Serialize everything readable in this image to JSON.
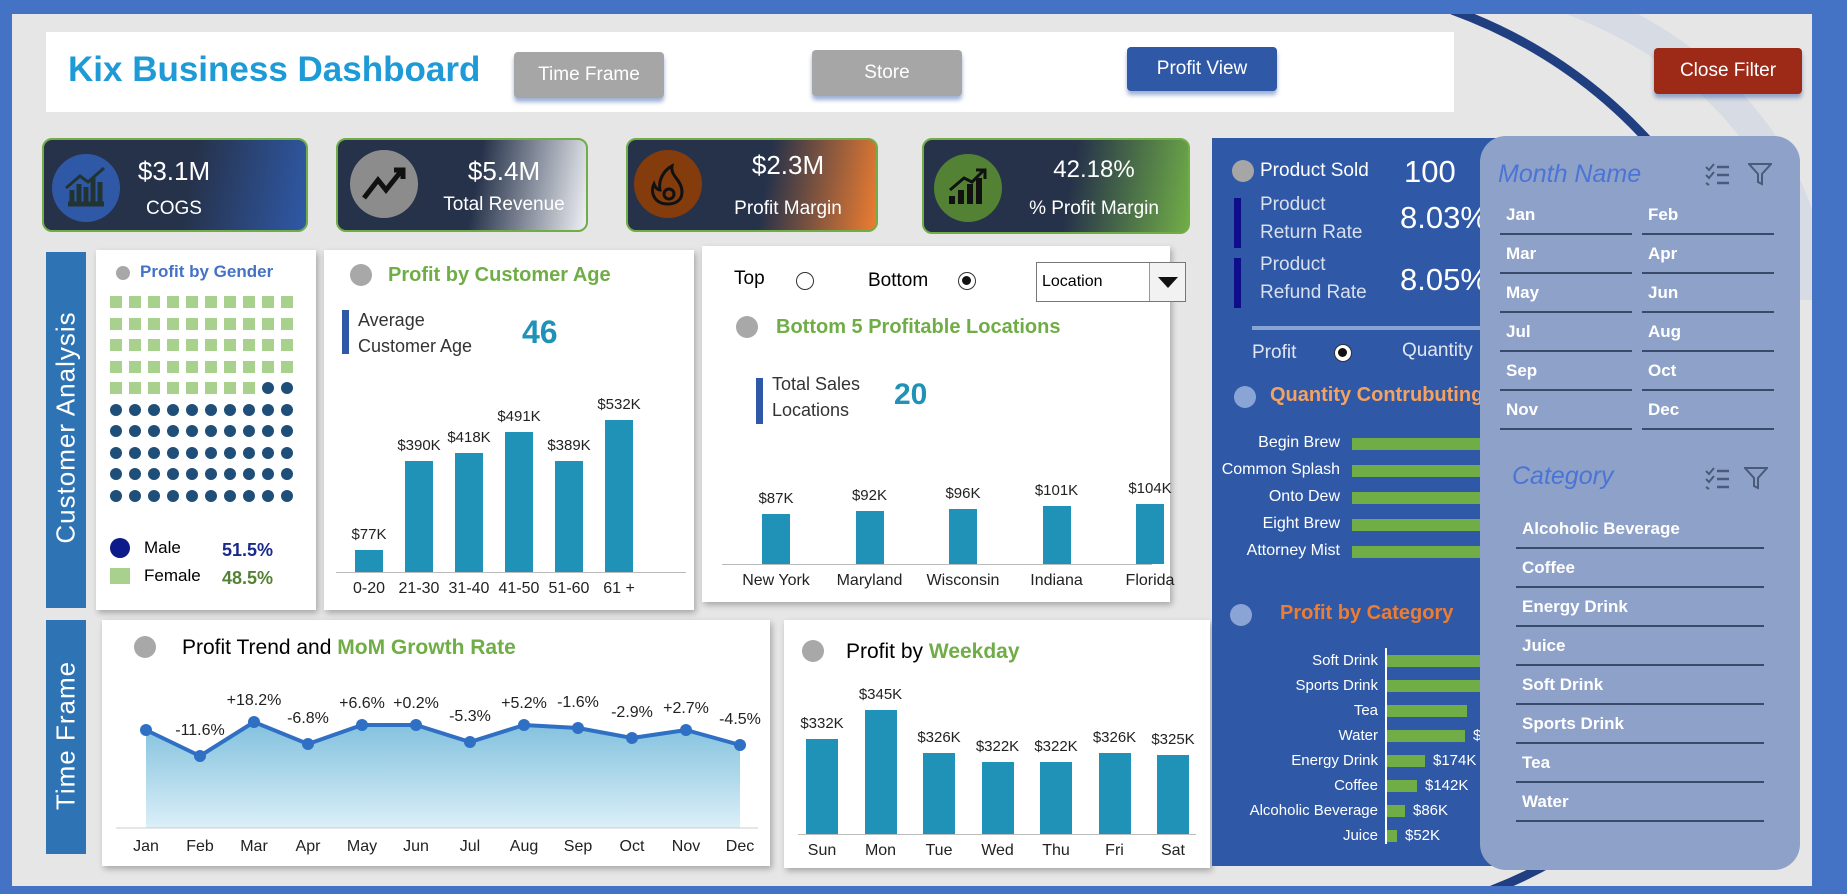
{
  "header": {
    "title": "Kix Business Dashboard",
    "buttons": {
      "time_frame": "Time Frame",
      "store": "Store",
      "profit_view": "Profit View",
      "close_filter": "Close Filter"
    }
  },
  "kpis": [
    {
      "value": "$3.1M",
      "label": "COGS",
      "icon": "bar-chart-icon"
    },
    {
      "value": "$5.4M",
      "label": "Total Revenue",
      "icon": "trend-up-icon"
    },
    {
      "value": "$2.3M",
      "label": "Profit Margin",
      "icon": "flame-icon"
    },
    {
      "value": "42.18%",
      "label": "% Profit Margin",
      "icon": "growth-chart-icon"
    }
  ],
  "side_labels": {
    "customer": "Customer   Analysis",
    "time": "Time  Frame"
  },
  "gender": {
    "title": "Profit by Gender",
    "male_label": "Male",
    "male_pct": "51.5%",
    "female_label": "Female",
    "female_pct": "48.5%",
    "colors": {
      "male": "#1f4e79",
      "female": "#a9d18e"
    }
  },
  "age": {
    "title": "Profit by Customer Age",
    "avg_label_1": "Average",
    "avg_label_2": "Customer Age",
    "avg_value": "46"
  },
  "locations": {
    "top_label": "Top",
    "bottom_label": "Bottom",
    "dropdown_value": "Location",
    "title": "Bottom 5 Profitable Locations",
    "total_label_1": "Total Sales",
    "total_label_2": "Locations",
    "total_value": "20"
  },
  "trend": {
    "title_a": "Profit Trend and ",
    "title_b": "MoM Growth Rate"
  },
  "weekday": {
    "title_a": "Profit by ",
    "title_b": "Weekday"
  },
  "product_panel": {
    "sold_label": "Product Sold",
    "sold_value": "100",
    "return_label_1": "Product",
    "return_label_2": "Return Rate",
    "return_value": "8.03%",
    "refund_label_1": "Product",
    "refund_label_2": "Refund Rate",
    "refund_value": "8.05%",
    "toggle_profit": "Profit",
    "toggle_quantity": "Quantity",
    "qty_title": "Quantity Contrubuting",
    "qty_items": [
      "Begin Brew",
      "Common Splash",
      "Onto Dew",
      "Eight Brew",
      "Attorney Mist"
    ],
    "cat_title": "Profit by Category",
    "cat_items": [
      "Soft Drink",
      "Sports Drink",
      "Tea",
      "Water",
      "Energy Drink",
      "Coffee",
      "Alcoholic Beverage",
      "Juice"
    ],
    "cat_values": [
      "",
      "",
      "",
      "$",
      "$174K",
      "$142K",
      "$86K",
      "$52K"
    ]
  },
  "filter": {
    "month_title": "Month Name",
    "months": [
      "Jan",
      "Feb",
      "Mar",
      "Apr",
      "May",
      "Jun",
      "Jul",
      "Aug",
      "Sep",
      "Oct",
      "Nov",
      "Dec"
    ],
    "category_title": "Category",
    "categories": [
      "Alcoholic Beverage",
      "Coffee",
      "Energy Drink",
      "Juice",
      "Soft Drink",
      "Sports Drink",
      "Tea",
      "Water"
    ]
  },
  "chart_data": [
    {
      "type": "bar",
      "title": "Profit by Customer Age",
      "categories": [
        "0-20",
        "21-30",
        "31-40",
        "41-50",
        "51-60",
        "61 +"
      ],
      "values": [
        77,
        390,
        418,
        491,
        389,
        532
      ],
      "labels": [
        "$77K",
        "$390K",
        "$418K",
        "$491K",
        "$389K",
        "$532K"
      ],
      "ylim": [
        0,
        560
      ]
    },
    {
      "type": "bar",
      "title": "Bottom 5 Profitable Locations",
      "categories": [
        "New York",
        "Maryland",
        "Wisconsin",
        "Indiana",
        "Florida"
      ],
      "values": [
        87,
        92,
        96,
        101,
        104
      ],
      "labels": [
        "$87K",
        "$92K",
        "$96K",
        "$101K",
        "$104K"
      ],
      "ylim": [
        0,
        200
      ]
    },
    {
      "type": "area",
      "title": "Profit Trend and MoM Growth Rate",
      "categories": [
        "Jan",
        "Feb",
        "Mar",
        "Apr",
        "May",
        "Jun",
        "Jul",
        "Aug",
        "Sep",
        "Oct",
        "Nov",
        "Dec"
      ],
      "growth_labels": [
        "",
        "-11.6%",
        "+18.2%",
        "-6.8%",
        "+6.6%",
        "+0.2%",
        "-5.3%",
        "+5.2%",
        "-1.6%",
        "-2.9%",
        "+2.7%",
        "-4.5%"
      ],
      "growth": [
        null,
        -11.6,
        18.2,
        -6.8,
        6.6,
        0.2,
        -5.3,
        5.2,
        -1.6,
        -2.9,
        2.7,
        -4.5
      ]
    },
    {
      "type": "bar",
      "title": "Profit by Weekday",
      "categories": [
        "Sun",
        "Mon",
        "Tue",
        "Wed",
        "Thu",
        "Fri",
        "Sat"
      ],
      "values": [
        332,
        345,
        326,
        322,
        322,
        326,
        325
      ],
      "labels": [
        "$332K",
        "$345K",
        "$326K",
        "$322K",
        "$322K",
        "$326K",
        "$325K"
      ]
    },
    {
      "type": "bar",
      "title": "Profit by Category",
      "categories": [
        "Soft Drink",
        "Sports Drink",
        "Tea",
        "Water",
        "Energy Drink",
        "Coffee",
        "Alcoholic Beverage",
        "Juice"
      ],
      "values": [
        null,
        null,
        null,
        null,
        174,
        142,
        86,
        52
      ]
    }
  ]
}
